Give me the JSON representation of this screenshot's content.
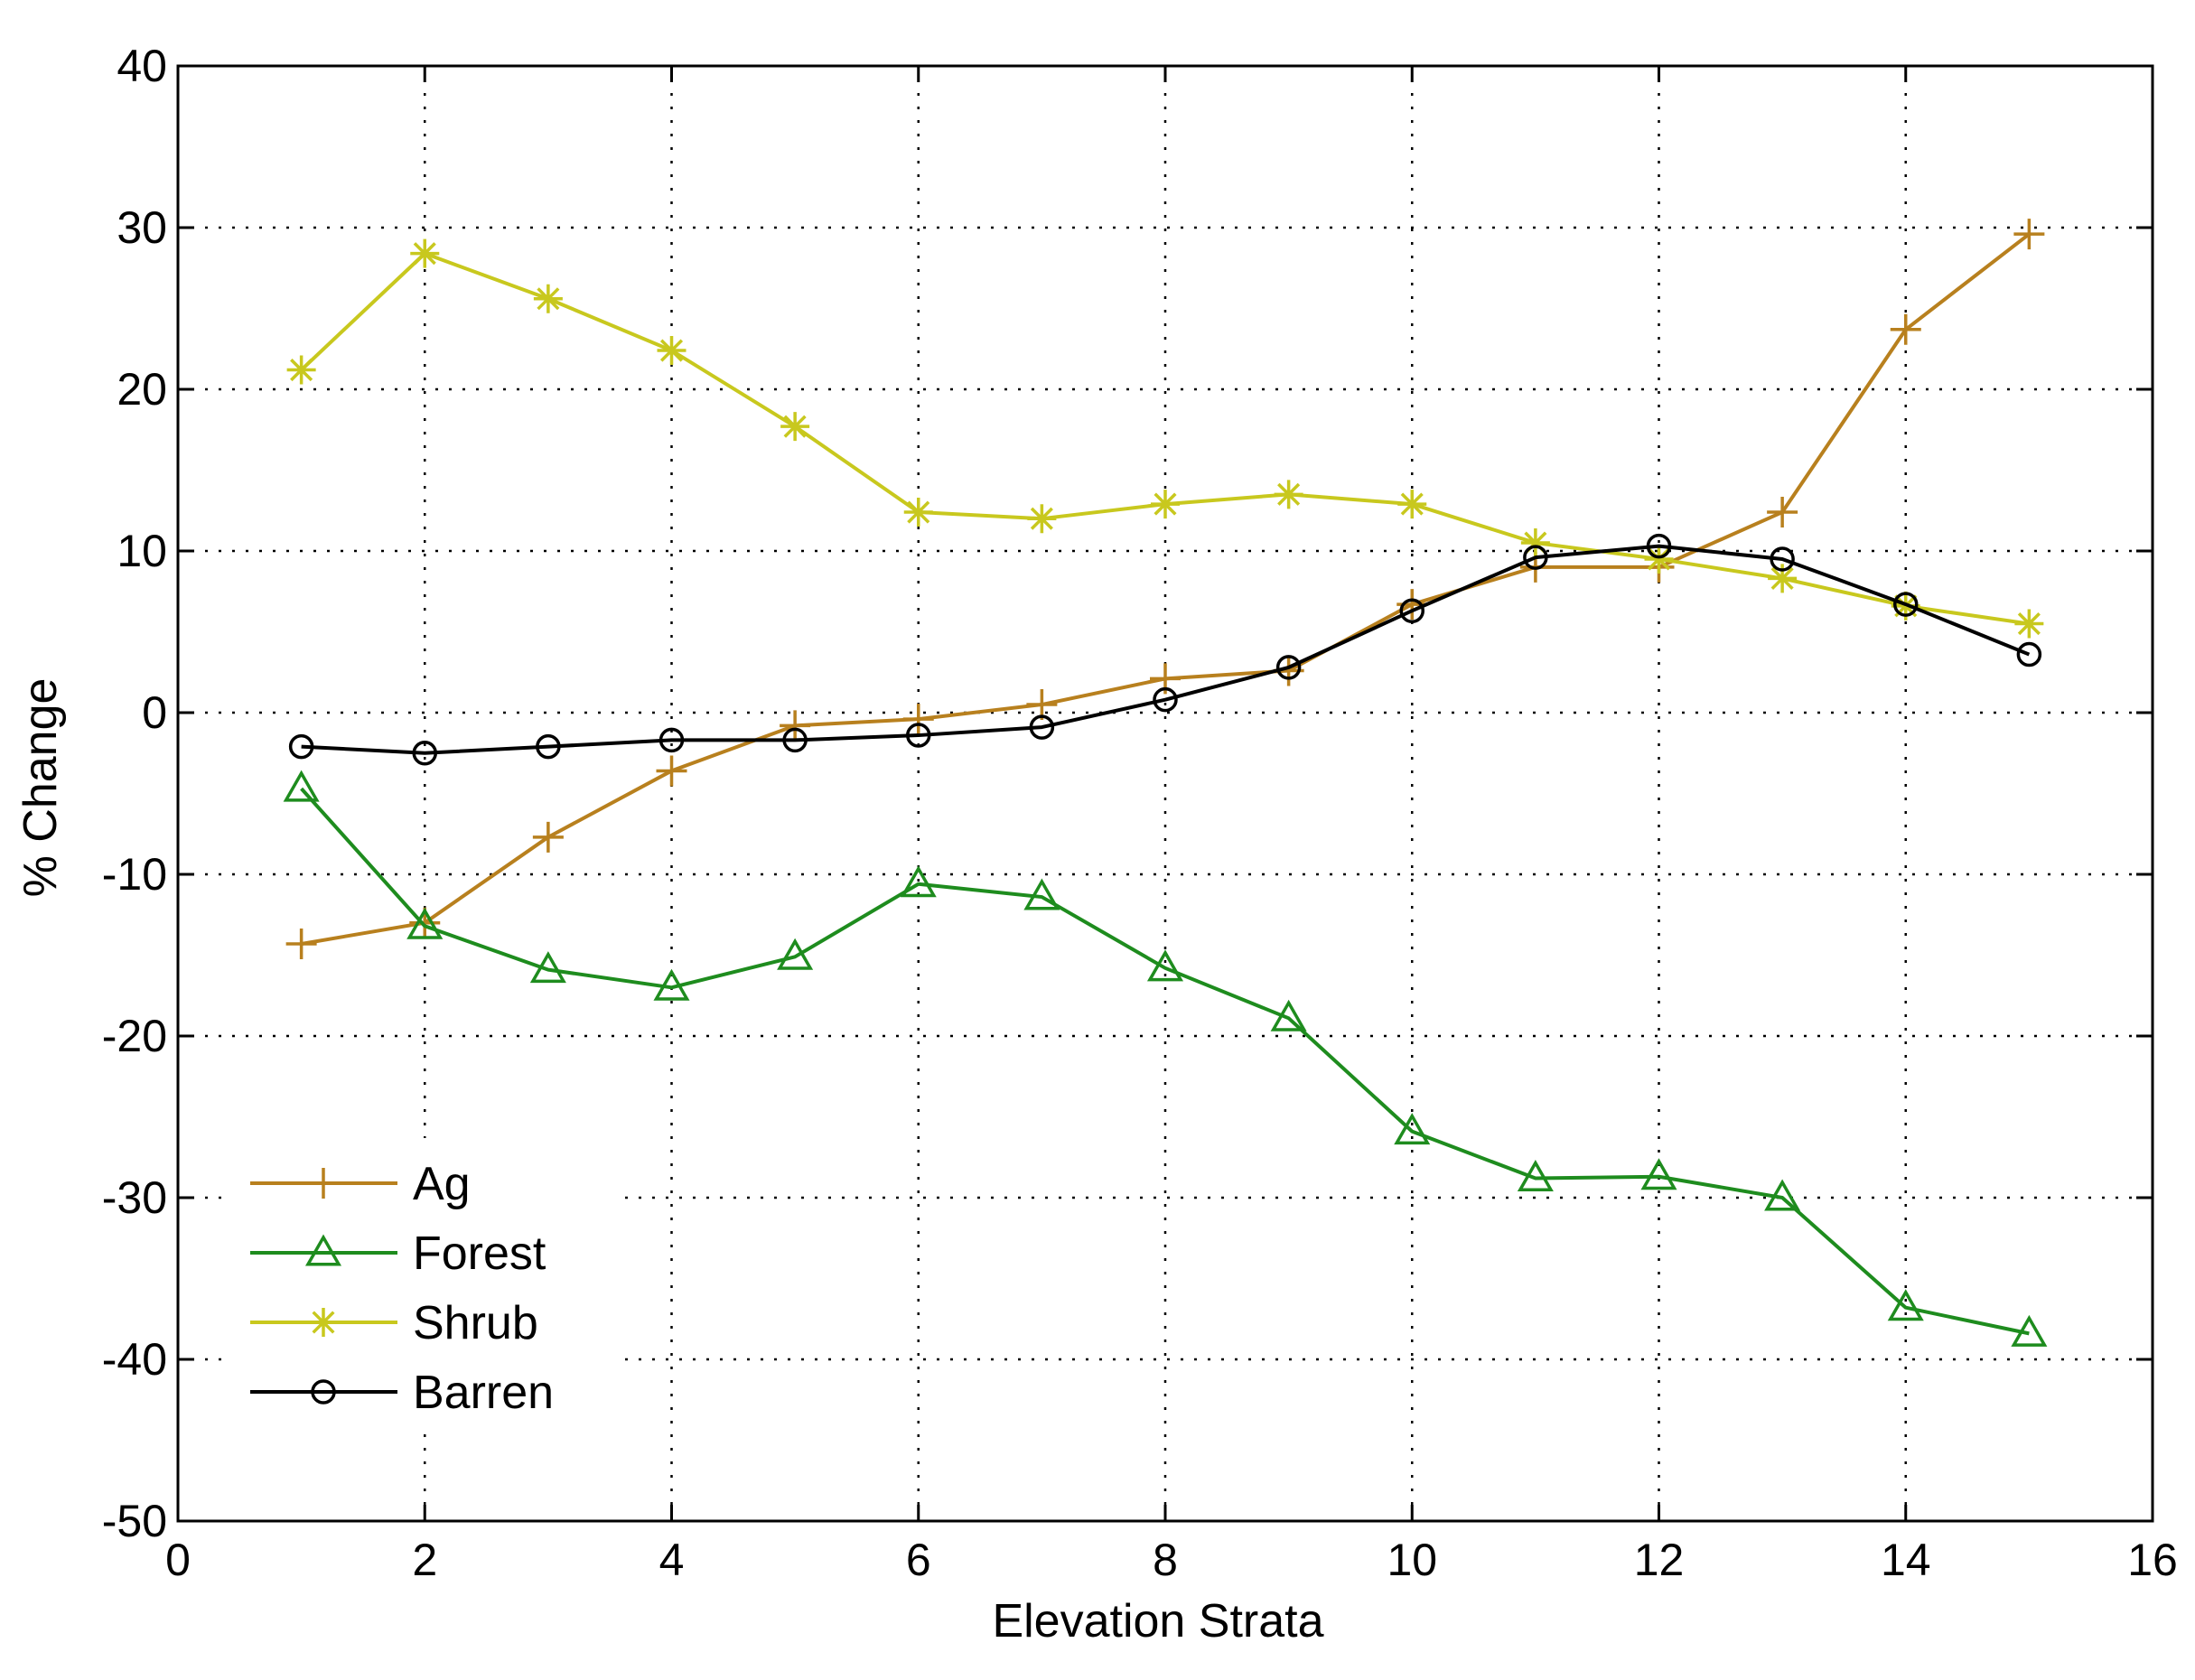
{
  "chart_data": {
    "type": "line",
    "title": "",
    "xlabel": "Elevation Strata",
    "ylabel": "% Change",
    "xlim": [
      0,
      16
    ],
    "ylim": [
      -50,
      40
    ],
    "xticks": [
      0,
      2,
      4,
      6,
      8,
      10,
      12,
      14,
      16
    ],
    "yticks": [
      -50,
      -40,
      -30,
      -20,
      -10,
      0,
      10,
      20,
      30,
      40
    ],
    "grid": true,
    "legend_position": "bottom-left",
    "x": [
      1,
      2,
      3,
      4,
      5,
      6,
      7,
      8,
      9,
      10,
      11,
      12,
      13,
      14,
      15
    ],
    "series": [
      {
        "name": "Ag",
        "color": "#b8801e",
        "marker": "plus",
        "values": [
          -14.3,
          -13.0,
          -7.7,
          -3.6,
          -0.8,
          -0.4,
          0.5,
          2.1,
          2.6,
          6.7,
          9.0,
          9.0,
          12.4,
          23.7,
          29.6
        ]
      },
      {
        "name": "Forest",
        "color": "#1e8c1e",
        "marker": "triangle",
        "values": [
          -4.7,
          -13.2,
          -15.9,
          -17.0,
          -15.1,
          -10.6,
          -11.4,
          -15.8,
          -18.9,
          -25.9,
          -28.8,
          -28.7,
          -30.0,
          -36.8,
          -38.4
        ]
      },
      {
        "name": "Shrub",
        "color": "#c8c81e",
        "marker": "star",
        "values": [
          21.2,
          28.4,
          25.6,
          22.4,
          17.7,
          12.4,
          12.0,
          12.9,
          13.5,
          12.9,
          10.5,
          9.5,
          8.3,
          6.6,
          5.5
        ]
      },
      {
        "name": "Barren",
        "color": "#000000",
        "marker": "circle",
        "values": [
          -2.1,
          -2.5,
          -2.1,
          -1.7,
          -1.7,
          -1.4,
          -0.9,
          0.8,
          2.8,
          6.3,
          9.6,
          10.3,
          9.5,
          6.7,
          3.6
        ]
      }
    ]
  }
}
